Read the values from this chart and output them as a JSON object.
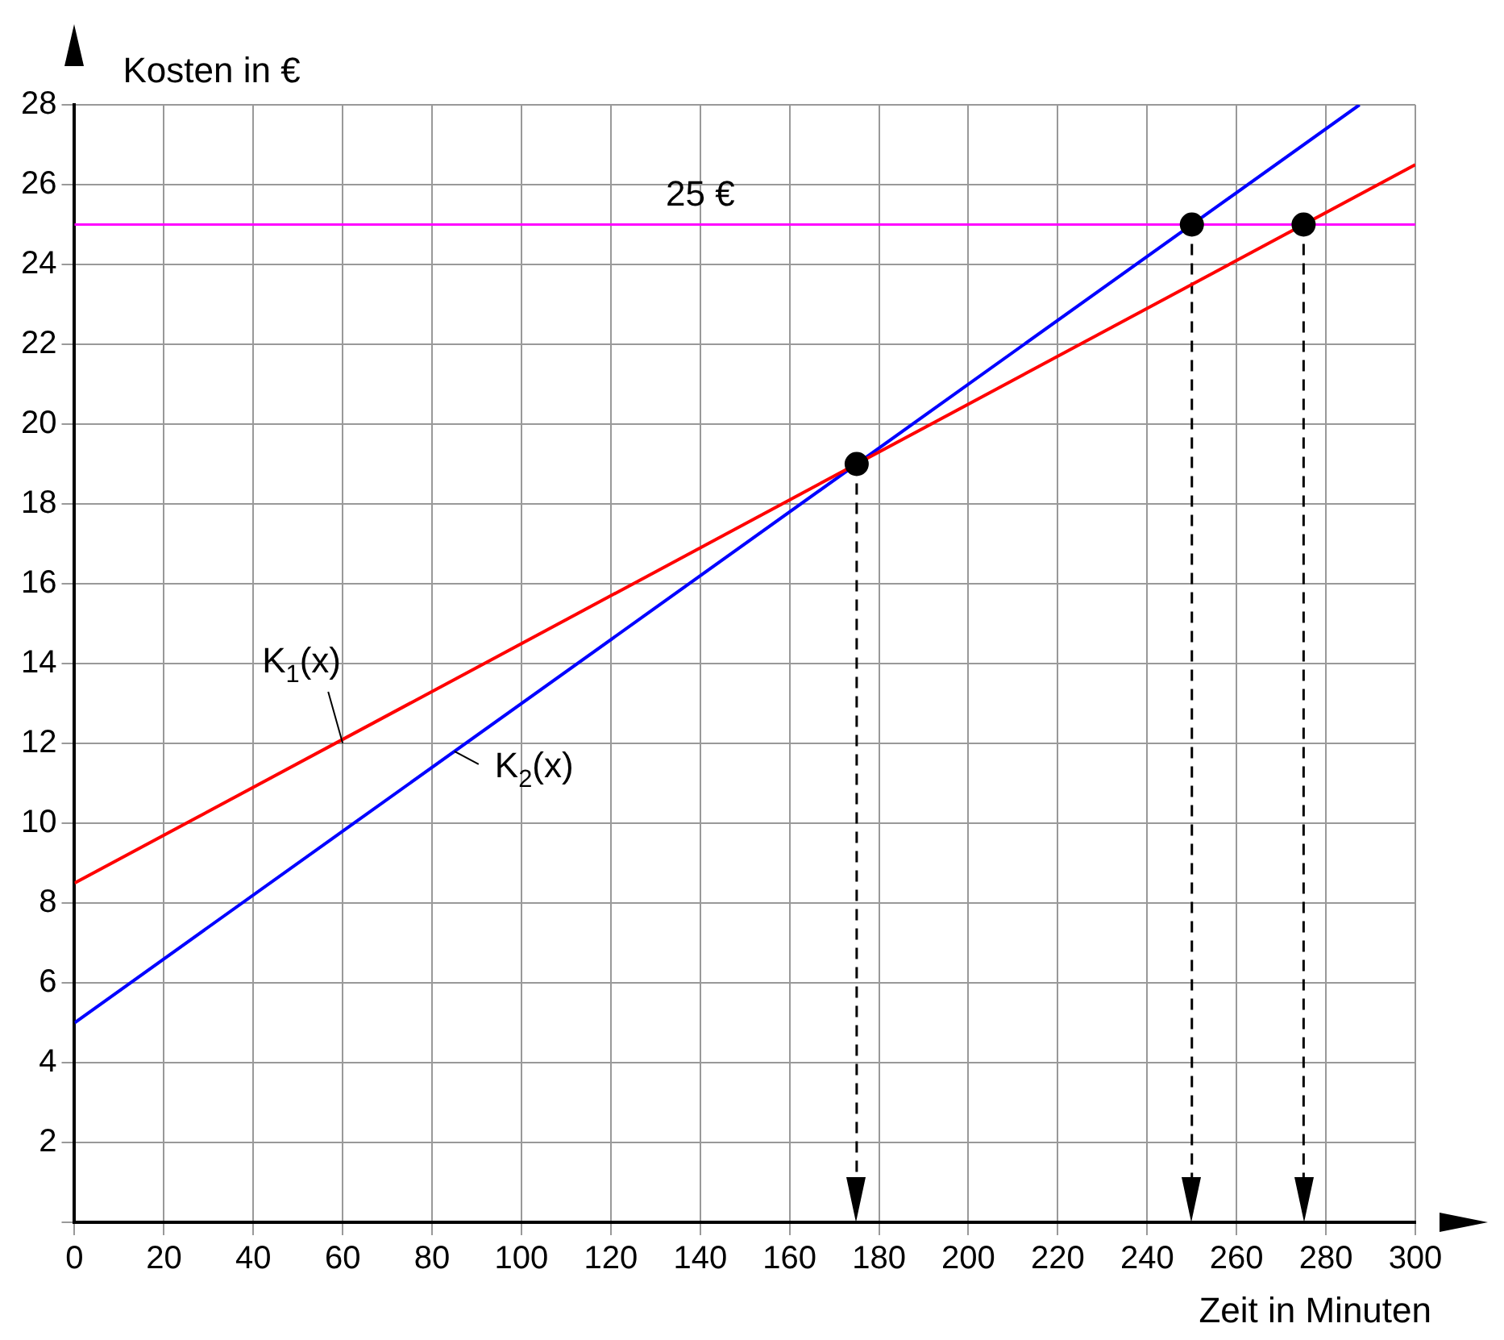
{
  "chart_data": {
    "type": "line",
    "xlabel": "Zeit in Minuten",
    "ylabel": "Kosten in €",
    "xlim": [
      0,
      300
    ],
    "xticks": [
      0,
      20,
      40,
      60,
      80,
      100,
      120,
      140,
      160,
      180,
      200,
      220,
      240,
      260,
      280,
      300
    ],
    "ylim": [
      0,
      28
    ],
    "yticks": [
      {
        "value": 0,
        "label": null
      },
      2,
      4,
      6,
      8,
      10,
      12,
      14,
      16,
      18,
      20,
      22,
      24,
      26,
      28
    ],
    "grid": true,
    "legend": false,
    "series": [
      {
        "type": "line",
        "color": "#ff0000",
        "x": [
          0,
          300
        ],
        "values": [
          8.5,
          26.5
        ]
      },
      {
        "type": "line",
        "color": "#0000ff",
        "x": [
          0,
          287.5
        ],
        "values": [
          5,
          28
        ]
      },
      {
        "type": "scatter",
        "color": "#000000",
        "marker": "circle",
        "x": [
          175,
          250,
          275
        ],
        "values": [
          19,
          25,
          25
        ]
      }
    ],
    "ref_lines": [
      {
        "axis": "y",
        "value": 25,
        "label": "25 €",
        "color": "#ff00ff",
        "line_style": "solid"
      },
      {
        "axis": "x",
        "value": 175,
        "label": null,
        "color": "#000000",
        "line_style": "dashed"
      },
      {
        "axis": "x",
        "value": 250,
        "label": null,
        "color": "#000000",
        "line_style": "dashed"
      },
      {
        "axis": "x",
        "value": 275,
        "label": null,
        "color": "#000000",
        "line_style": "dashed"
      }
    ],
    "annotations": [
      {
        "text": "K$_{1}$(x)",
        "x": 60,
        "y": 12
      },
      {
        "text": "K$_{2}$(x)",
        "x": 85,
        "y": 11.8
      }
    ]
  }
}
